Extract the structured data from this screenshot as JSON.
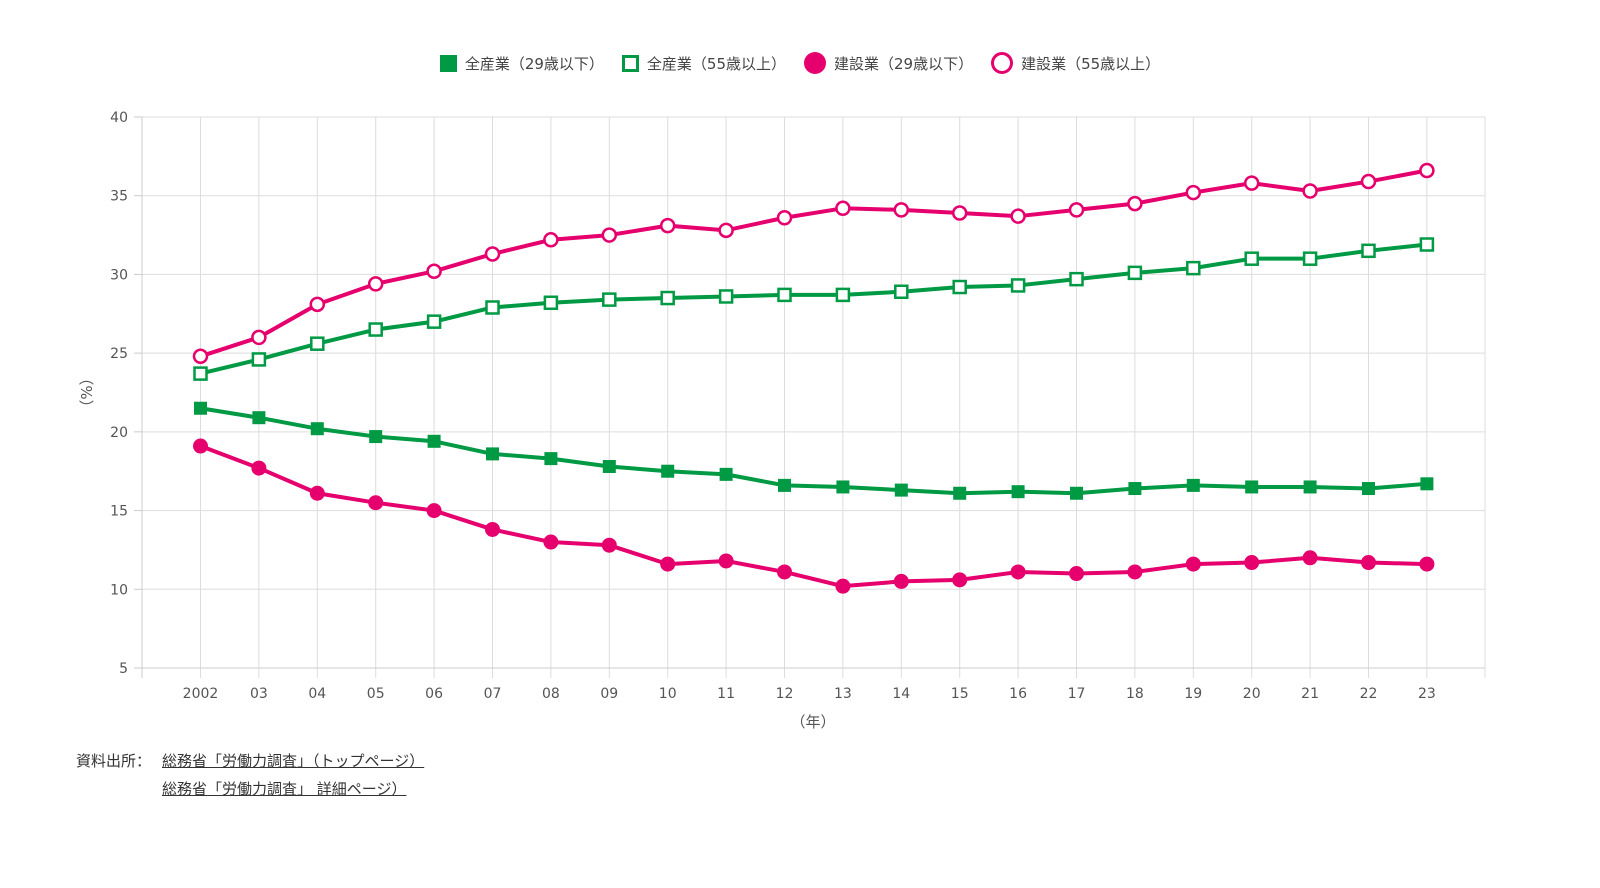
{
  "legend": [
    {
      "label": "全産業（29歳以下）",
      "color": "#009944",
      "marker": "filled-square"
    },
    {
      "label": "全産業（55歳以上）",
      "color": "#009944",
      "marker": "open-square"
    },
    {
      "label": "建設業（29歳以下）",
      "color": "#e6006e",
      "marker": "filled-circle"
    },
    {
      "label": "建設業（55歳以上）",
      "color": "#e6006e",
      "marker": "open-circle"
    }
  ],
  "source": {
    "label": "資料出所：",
    "links": [
      "総務省「労働力調査」（トップページ）",
      "総務省「労働力調査」 詳細ページ）"
    ]
  },
  "chart_data": {
    "type": "line",
    "categories": [
      "2002",
      "03",
      "04",
      "05",
      "06",
      "07",
      "08",
      "09",
      "10",
      "11",
      "12",
      "13",
      "14",
      "15",
      "16",
      "17",
      "18",
      "19",
      "20",
      "21",
      "22",
      "23"
    ],
    "xlabel": "（年）",
    "ylabel": "（%）",
    "ylim": [
      5,
      40
    ],
    "yticks": [
      5,
      10,
      15,
      20,
      25,
      30,
      35,
      40
    ],
    "grid": true,
    "legend_position": "top",
    "series": [
      {
        "name": "全産業（29歳以下）",
        "color": "#009944",
        "marker": "filled-square",
        "values": [
          21.5,
          20.9,
          20.2,
          19.7,
          19.4,
          18.6,
          18.3,
          17.8,
          17.5,
          17.3,
          16.6,
          16.5,
          16.3,
          16.1,
          16.2,
          16.1,
          16.4,
          16.6,
          16.5,
          16.5,
          16.4,
          16.7
        ]
      },
      {
        "name": "全産業（55歳以上）",
        "color": "#009944",
        "marker": "open-square",
        "values": [
          23.7,
          24.6,
          25.6,
          26.5,
          27.0,
          27.9,
          28.2,
          28.4,
          28.5,
          28.6,
          28.7,
          28.7,
          28.9,
          29.2,
          29.3,
          29.7,
          30.1,
          30.4,
          31.0,
          31.0,
          31.5,
          31.9
        ]
      },
      {
        "name": "建設業（29歳以下）",
        "color": "#e6006e",
        "marker": "filled-circle",
        "values": [
          19.1,
          17.7,
          16.1,
          15.5,
          15.0,
          13.8,
          13.0,
          12.8,
          11.6,
          11.8,
          11.1,
          10.2,
          10.5,
          10.6,
          11.1,
          11.0,
          11.1,
          11.6,
          11.7,
          12.0,
          11.7,
          11.6
        ]
      },
      {
        "name": "建設業（55歳以上）",
        "color": "#e6006e",
        "marker": "open-circle",
        "values": [
          24.8,
          26.0,
          28.1,
          29.4,
          30.2,
          31.3,
          32.2,
          32.5,
          33.1,
          32.8,
          33.6,
          34.2,
          34.1,
          33.9,
          33.7,
          34.1,
          34.5,
          35.2,
          35.8,
          35.3,
          35.9,
          36.6
        ]
      }
    ]
  }
}
